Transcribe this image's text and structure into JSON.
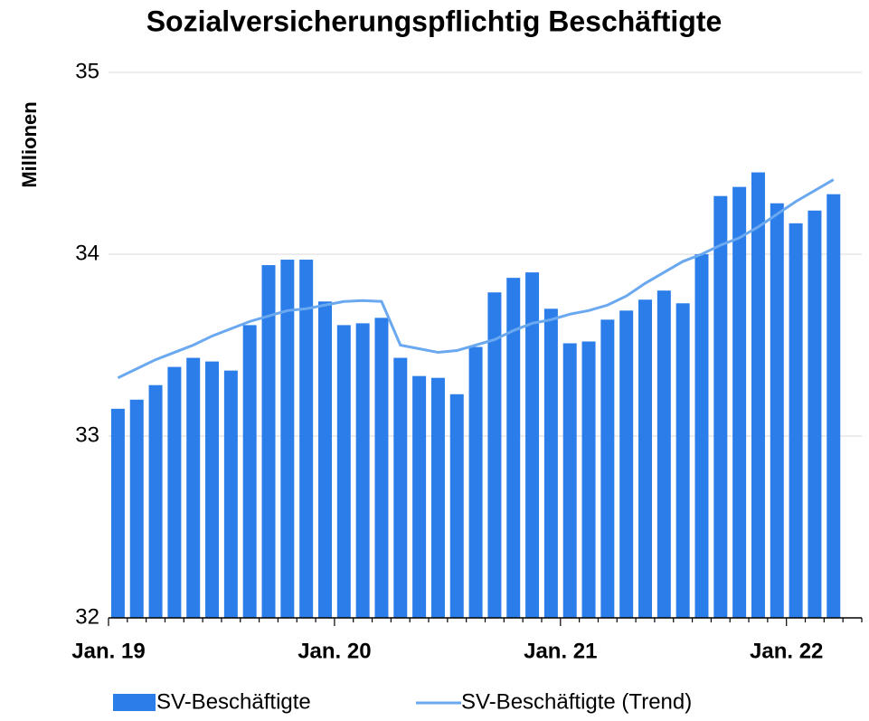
{
  "chart_data": {
    "type": "bar_line",
    "title": "Sozialversicherungspflichtig Beschäftigte",
    "y_label": "Millionen",
    "categories": [
      "Jan. 19",
      null,
      null,
      null,
      null,
      null,
      null,
      null,
      null,
      null,
      null,
      null,
      "Jan. 20",
      null,
      null,
      null,
      null,
      null,
      null,
      null,
      null,
      null,
      null,
      null,
      "Jan. 21",
      null,
      null,
      null,
      null,
      null,
      null,
      null,
      null,
      null,
      null,
      null,
      "Jan. 22",
      null,
      null
    ],
    "series": [
      {
        "name": "SV-Beschäftigte",
        "kind": "bar",
        "color": "#2b7de9",
        "values": [
          33.15,
          33.2,
          33.28,
          33.38,
          33.43,
          33.41,
          33.36,
          33.61,
          33.94,
          33.97,
          33.97,
          33.74,
          33.61,
          33.62,
          33.65,
          33.43,
          33.33,
          33.32,
          33.23,
          33.49,
          33.79,
          33.87,
          33.9,
          33.7,
          33.51,
          33.52,
          33.64,
          33.69,
          33.75,
          33.8,
          33.73,
          34.0,
          34.32,
          34.37,
          34.45,
          34.28,
          34.17,
          34.24,
          34.33
        ]
      },
      {
        "name": "SV-Beschäftigte (Trend)",
        "kind": "line",
        "color": "#6aa8f0",
        "values": [
          33.32,
          33.37,
          33.42,
          33.46,
          33.5,
          33.55,
          33.59,
          33.63,
          33.66,
          33.69,
          33.7,
          33.72,
          33.74,
          33.745,
          33.74,
          33.5,
          33.48,
          33.46,
          33.47,
          33.5,
          33.53,
          33.58,
          33.62,
          33.64,
          33.67,
          33.69,
          33.72,
          33.77,
          33.84,
          33.9,
          33.96,
          34.0,
          34.05,
          34.09,
          34.15,
          34.22,
          34.29,
          34.35,
          34.41
        ]
      }
    ],
    "ylim": [
      32,
      35
    ],
    "yticks": [
      32,
      33,
      34,
      35
    ],
    "grid": true
  }
}
